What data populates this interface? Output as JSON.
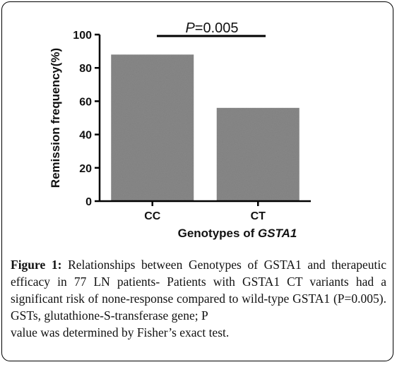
{
  "chart_data": {
    "type": "bar",
    "categories": [
      "CC",
      "CT"
    ],
    "values": [
      88,
      56
    ],
    "bar_color": "#888888",
    "ylabel": "Remission frequency(%)",
    "xlabel_prefix": "Genotypes of ",
    "xlabel_gene": "GSTA1",
    "ylim": [
      0,
      100
    ],
    "yticks": [
      0,
      20,
      40,
      60,
      80,
      100
    ],
    "annotation": {
      "p_symbol": "P",
      "p_value_text": "=0.005"
    },
    "grid": false,
    "legend": "none"
  },
  "caption": {
    "label": "Figure 1:",
    "body": "Relationships between Genotypes of GSTA1 and therapeutic efficacy in 77 LN patients- Patients with GSTA1 CT variants had a significant risk of none-response compared to wild-type GSTA1 (P=0.005). GSTs, glutathione-S-transferase gene; P",
    "last_line": "value was determined by Fisher’s exact test."
  }
}
